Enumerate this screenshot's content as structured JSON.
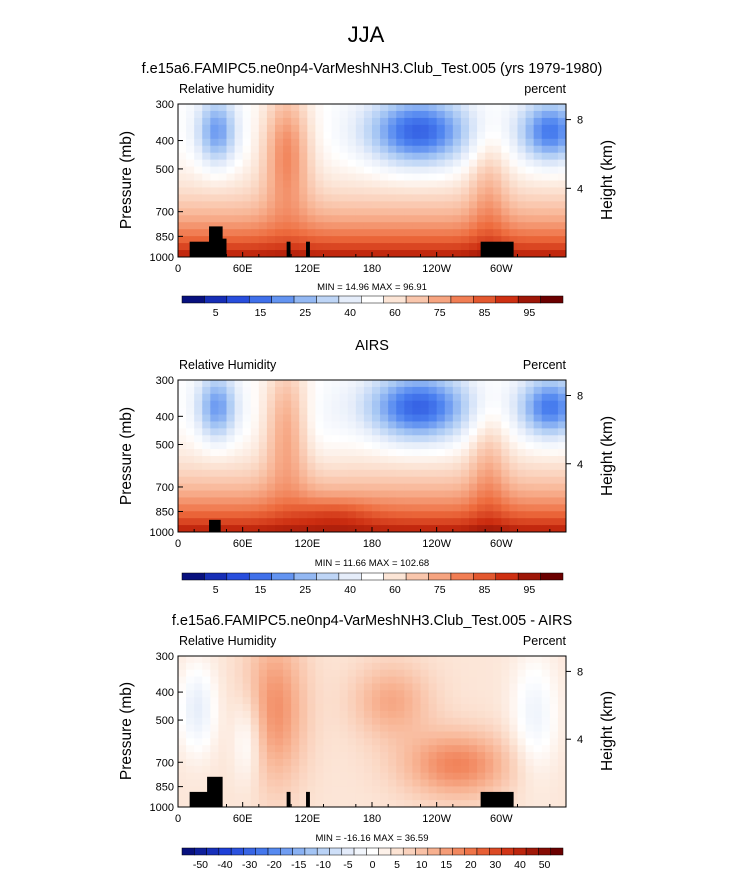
{
  "figure": {
    "title": "JJA"
  },
  "colors": {
    "cbar_blue_dark": "#08107e",
    "cbar_red_dark": "#6b0000",
    "white": "#ffffff",
    "terrain": "#000000"
  },
  "chart_data": [
    {
      "type": "heatmap",
      "title": "f.e15a6.FAMIPC5.ne0np4-VarMeshNH3.Club_Test.005 (yrs 1979-1980)",
      "left_label": "Relative humidity",
      "right_label": "percent",
      "ylabel": "Pressure (mb)",
      "y2label": "Height (km)",
      "yticks": [
        300,
        400,
        500,
        700,
        850,
        1000
      ],
      "y2ticks": [
        8,
        4
      ],
      "xticks": [
        "0",
        "60E",
        "120E",
        "180",
        "120W",
        "60W"
      ],
      "stats": "MIN = 14.96  MAX = 96.91",
      "colorbar_labels": [
        "5",
        "15",
        "25",
        "40",
        "60",
        "75",
        "85",
        "95"
      ],
      "value_min": 14.96,
      "value_max": 96.91
    },
    {
      "type": "heatmap",
      "title": "AIRS",
      "left_label": "Relative Humidity",
      "right_label": "Percent",
      "ylabel": "Pressure (mb)",
      "y2label": "Height (km)",
      "yticks": [
        300,
        400,
        500,
        700,
        850,
        1000
      ],
      "y2ticks": [
        8,
        4
      ],
      "xticks": [
        "0",
        "60E",
        "120E",
        "180",
        "120W",
        "60W"
      ],
      "stats": "MIN = 11.66  MAX = 102.68",
      "colorbar_labels": [
        "5",
        "15",
        "25",
        "40",
        "60",
        "75",
        "85",
        "95"
      ],
      "value_min": 11.66,
      "value_max": 102.68
    },
    {
      "type": "heatmap",
      "title": "f.e15a6.FAMIPC5.ne0np4-VarMeshNH3.Club_Test.005 - AIRS",
      "left_label": "Relative Humidity",
      "right_label": "Percent",
      "ylabel": "Pressure (mb)",
      "y2label": "Height (km)",
      "yticks": [
        300,
        400,
        500,
        700,
        850,
        1000
      ],
      "y2ticks": [
        8,
        4
      ],
      "xticks": [
        "0",
        "60E",
        "120E",
        "180",
        "120W",
        "60W"
      ],
      "stats": "MIN = -16.16  MAX = 36.59",
      "colorbar_labels": [
        "-50",
        "-40",
        "-30",
        "-20",
        "-15",
        "-10",
        "-5",
        "0",
        "5",
        "10",
        "15",
        "20",
        "30",
        "40",
        "50"
      ],
      "value_min": -16.16,
      "value_max": 36.59
    }
  ]
}
